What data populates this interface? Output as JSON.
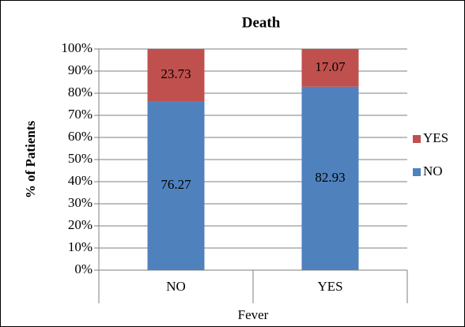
{
  "chart_data": {
    "type": "stacked_bar",
    "title": "Death",
    "ylabel": "% of Patients",
    "xlabel": "Fever",
    "categories": [
      "NO",
      "YES"
    ],
    "series": [
      {
        "name": "NO",
        "color": "#4f81bd",
        "values": [
          76.27,
          82.93
        ]
      },
      {
        "name": "YES",
        "color": "#c0504d",
        "values": [
          23.73,
          17.07
        ]
      }
    ],
    "ylim": [
      0,
      100
    ],
    "yticks": [
      {
        "value": 0,
        "label": "0%"
      },
      {
        "value": 10,
        "label": "10%"
      },
      {
        "value": 20,
        "label": "20%"
      },
      {
        "value": 30,
        "label": "30%"
      },
      {
        "value": 40,
        "label": "40%"
      },
      {
        "value": 50,
        "label": "50%"
      },
      {
        "value": 60,
        "label": "60%"
      },
      {
        "value": 70,
        "label": "70%"
      },
      {
        "value": 80,
        "label": "80%"
      },
      {
        "value": 90,
        "label": "90%"
      },
      {
        "value": 100,
        "label": "100%"
      }
    ],
    "grid": true,
    "legend": "right"
  }
}
